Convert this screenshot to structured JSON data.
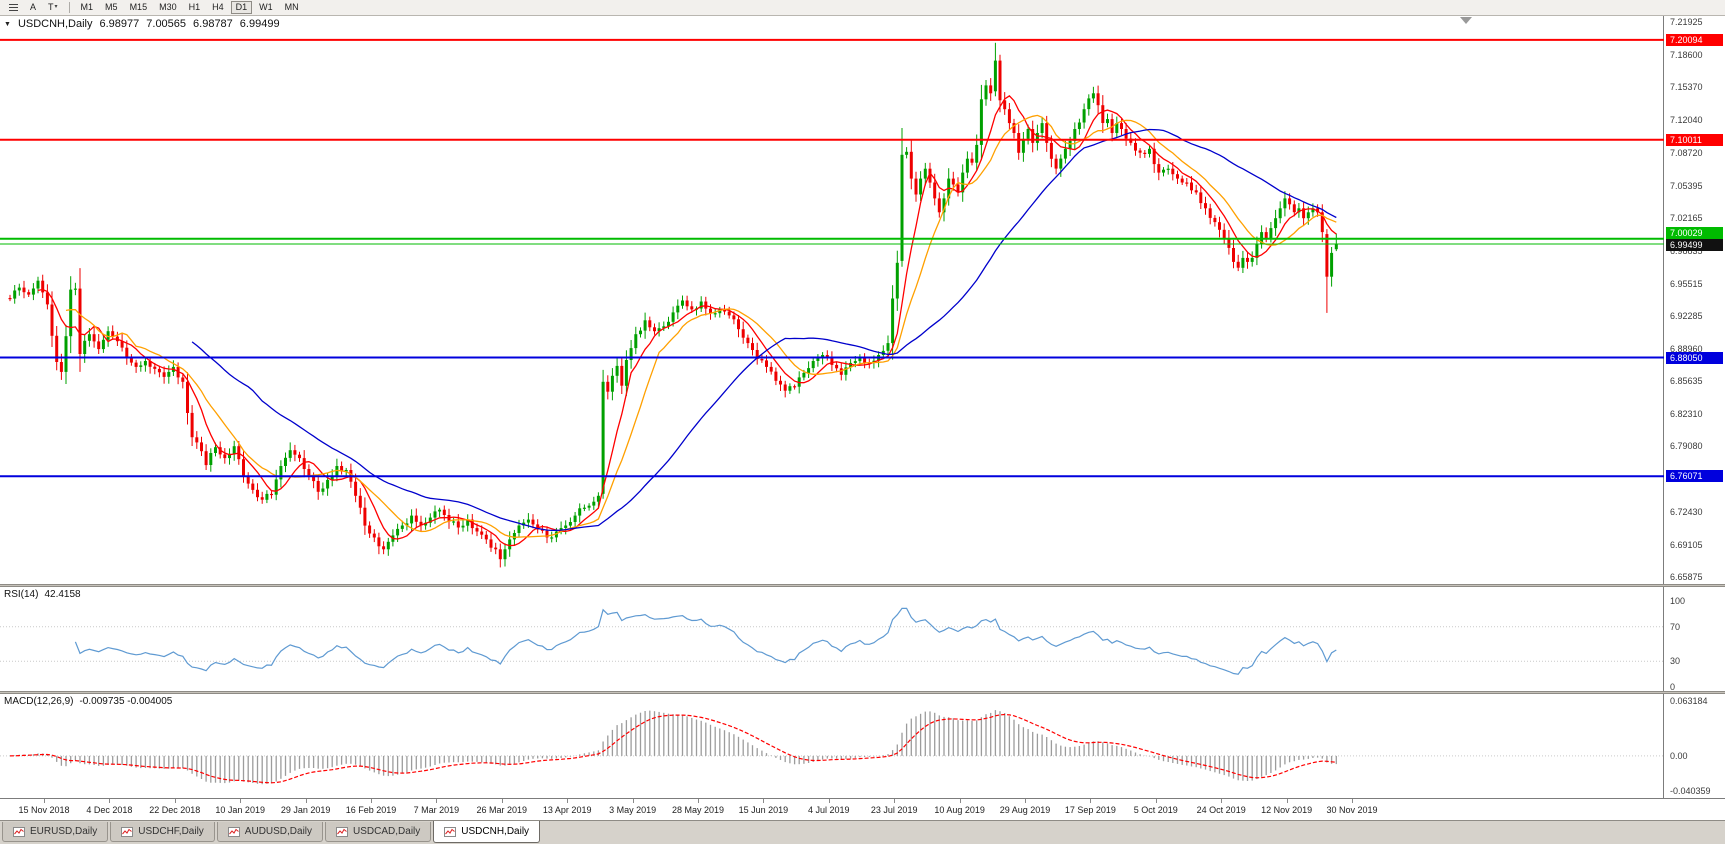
{
  "toolbar": {
    "cursor_label": "A",
    "text_label": "T",
    "periods": [
      "M1",
      "M5",
      "M15",
      "M30",
      "H1",
      "H4",
      "D1",
      "W1",
      "MN"
    ],
    "active_period": "D1"
  },
  "quote_bar": {
    "symbol": "USDCNH,Daily",
    "open": "6.98977",
    "high": "7.00565",
    "low": "6.98787",
    "close": "6.99499"
  },
  "chart_data": {
    "type": "candlestick",
    "title": "USDCNH,Daily",
    "timeframe": "Daily",
    "num_candles": 285,
    "price_max_axis": 7.225,
    "price_min_axis": 6.652,
    "y_axis_labels": [
      "7.21925",
      "7.18600",
      "7.15370",
      "7.12040",
      "7.08720",
      "7.05395",
      "7.02165",
      "6.98835",
      "6.95515",
      "6.92285",
      "6.88960",
      "6.85635",
      "6.82310",
      "6.79080",
      "6.75750",
      "6.72430",
      "6.69105",
      "6.65875"
    ],
    "x_axis_labels": [
      "15 Nov 2018",
      "4 Dec 2018",
      "22 Dec 2018",
      "10 Jan 2019",
      "29 Jan 2019",
      "16 Feb 2019",
      "7 Mar 2019",
      "26 Mar 2019",
      "13 Apr 2019",
      "3 May 2019",
      "28 May 2019",
      "15 Jun 2019",
      "4 Jul 2019",
      "23 Jul 2019",
      "10 Aug 2019",
      "29 Aug 2019",
      "17 Sep 2019",
      "5 Oct 2019",
      "24 Oct 2019",
      "12 Nov 2019",
      "30 Nov 2019"
    ],
    "candle_up_color": "#00a000",
    "candle_down_color": "#ee0000",
    "hlines": [
      {
        "price": 7.20094,
        "label": "7.20094",
        "color": "#ff0000",
        "width": 2
      },
      {
        "price": 7.10011,
        "label": "7.10011",
        "color": "#ff0000",
        "width": 2
      },
      {
        "price": 7.00029,
        "label": "7.00029",
        "color": "#00bb00",
        "width": 2
      },
      {
        "price": 6.8805,
        "label": "6.88050",
        "color": "#0000dd",
        "width": 2
      },
      {
        "price": 6.76071,
        "label": "6.76071",
        "color": "#0000dd",
        "width": 2
      }
    ],
    "bid_line": {
      "price": 6.99499,
      "label": "6.99499",
      "line_color": "#00bb00",
      "label_bg": "#111111"
    },
    "moving_averages": [
      {
        "name": "fast",
        "type": "sma",
        "period": 7,
        "color": "#ff0000"
      },
      {
        "name": "medium",
        "type": "sma",
        "period": 13,
        "color": "#ffa000"
      },
      {
        "name": "slow",
        "type": "sma",
        "period": 40,
        "color": "#0000cc"
      }
    ],
    "price_anchors": [
      [
        0,
        6.94
      ],
      [
        2,
        6.951
      ],
      [
        4,
        6.944
      ],
      [
        6,
        6.958
      ],
      [
        8,
        6.934
      ],
      [
        10,
        6.876
      ],
      [
        11,
        6.866
      ],
      [
        12,
        6.902
      ],
      [
        13,
        6.949
      ],
      [
        14,
        6.95
      ],
      [
        15,
        6.884
      ],
      [
        17,
        6.904
      ],
      [
        19,
        6.889
      ],
      [
        21,
        6.907
      ],
      [
        23,
        6.897
      ],
      [
        25,
        6.881
      ],
      [
        27,
        6.871
      ],
      [
        29,
        6.877
      ],
      [
        31,
        6.869
      ],
      [
        33,
        6.861
      ],
      [
        35,
        6.871
      ],
      [
        37,
        6.856
      ],
      [
        39,
        6.8
      ],
      [
        41,
        6.786
      ],
      [
        42,
        6.772
      ],
      [
        44,
        6.79
      ],
      [
        46,
        6.779
      ],
      [
        48,
        6.791
      ],
      [
        50,
        6.761
      ],
      [
        52,
        6.747
      ],
      [
        54,
        6.737
      ],
      [
        56,
        6.742
      ],
      [
        58,
        6.771
      ],
      [
        60,
        6.787
      ],
      [
        62,
        6.779
      ],
      [
        64,
        6.761
      ],
      [
        66,
        6.745
      ],
      [
        68,
        6.757
      ],
      [
        70,
        6.771
      ],
      [
        72,
        6.767
      ],
      [
        74,
        6.741
      ],
      [
        76,
        6.711
      ],
      [
        78,
        6.699
      ],
      [
        80,
        6.687
      ],
      [
        82,
        6.701
      ],
      [
        84,
        6.711
      ],
      [
        86,
        6.721
      ],
      [
        88,
        6.711
      ],
      [
        90,
        6.719
      ],
      [
        92,
        6.727
      ],
      [
        94,
        6.715
      ],
      [
        96,
        6.709
      ],
      [
        98,
        6.717
      ],
      [
        100,
        6.705
      ],
      [
        102,
        6.697
      ],
      [
        104,
        6.687
      ],
      [
        105,
        6.677
      ],
      [
        107,
        6.697
      ],
      [
        109,
        6.711
      ],
      [
        111,
        6.717
      ],
      [
        113,
        6.707
      ],
      [
        115,
        6.699
      ],
      [
        117,
        6.705
      ],
      [
        119,
        6.711
      ],
      [
        121,
        6.721
      ],
      [
        123,
        6.729
      ],
      [
        125,
        6.735
      ],
      [
        126,
        6.741
      ],
      [
        127,
        6.856
      ],
      [
        128,
        6.846
      ],
      [
        129,
        6.862
      ],
      [
        130,
        6.872
      ],
      [
        131,
        6.852
      ],
      [
        132,
        6.878
      ],
      [
        133,
        6.89
      ],
      [
        134,
        6.904
      ],
      [
        136,
        6.918
      ],
      [
        138,
        6.907
      ],
      [
        140,
        6.912
      ],
      [
        142,
        6.926
      ],
      [
        144,
        6.938
      ],
      [
        146,
        6.929
      ],
      [
        148,
        6.937
      ],
      [
        150,
        6.925
      ],
      [
        152,
        6.929
      ],
      [
        154,
        6.923
      ],
      [
        156,
        6.909
      ],
      [
        158,
        6.895
      ],
      [
        160,
        6.879
      ],
      [
        162,
        6.871
      ],
      [
        164,
        6.857
      ],
      [
        166,
        6.847
      ],
      [
        168,
        6.851
      ],
      [
        170,
        6.865
      ],
      [
        172,
        6.877
      ],
      [
        174,
        6.883
      ],
      [
        176,
        6.873
      ],
      [
        178,
        6.863
      ],
      [
        180,
        6.875
      ],
      [
        182,
        6.881
      ],
      [
        184,
        6.875
      ],
      [
        186,
        6.883
      ],
      [
        188,
        6.895
      ],
      [
        189,
        6.94
      ],
      [
        190,
        6.976
      ],
      [
        191,
        7.085
      ],
      [
        192,
        7.088
      ],
      [
        193,
        7.061
      ],
      [
        194,
        7.045
      ],
      [
        195,
        7.061
      ],
      [
        196,
        7.071
      ],
      [
        197,
        7.057
      ],
      [
        198,
        7.041
      ],
      [
        199,
        7.027
      ],
      [
        200,
        7.041
      ],
      [
        201,
        7.061
      ],
      [
        202,
        7.055
      ],
      [
        203,
        7.047
      ],
      [
        204,
        7.067
      ],
      [
        205,
        7.081
      ],
      [
        206,
        7.077
      ],
      [
        207,
        7.095
      ],
      [
        208,
        7.141
      ],
      [
        209,
        7.155
      ],
      [
        210,
        7.147
      ],
      [
        211,
        7.18
      ],
      [
        212,
        7.14
      ],
      [
        213,
        7.131
      ],
      [
        214,
        7.117
      ],
      [
        215,
        7.107
      ],
      [
        216,
        7.087
      ],
      [
        217,
        7.101
      ],
      [
        218,
        7.111
      ],
      [
        219,
        7.097
      ],
      [
        220,
        7.107
      ],
      [
        221,
        7.117
      ],
      [
        222,
        7.097
      ],
      [
        223,
        7.081
      ],
      [
        224,
        7.071
      ],
      [
        226,
        7.091
      ],
      [
        228,
        7.111
      ],
      [
        230,
        7.131
      ],
      [
        232,
        7.147
      ],
      [
        233,
        7.135
      ],
      [
        234,
        7.117
      ],
      [
        235,
        7.121
      ],
      [
        236,
        7.107
      ],
      [
        237,
        7.117
      ],
      [
        238,
        7.111
      ],
      [
        240,
        7.097
      ],
      [
        242,
        7.087
      ],
      [
        244,
        7.091
      ],
      [
        246,
        7.067
      ],
      [
        248,
        7.071
      ],
      [
        250,
        7.061
      ],
      [
        252,
        7.057
      ],
      [
        254,
        7.047
      ],
      [
        256,
        7.031
      ],
      [
        258,
        7.017
      ],
      [
        260,
        7.001
      ],
      [
        261,
        6.991
      ],
      [
        262,
        6.977
      ],
      [
        263,
        6.971
      ],
      [
        264,
        6.981
      ],
      [
        265,
        6.977
      ],
      [
        266,
        6.981
      ],
      [
        267,
        6.995
      ],
      [
        268,
        7.007
      ],
      [
        269,
        7.001
      ],
      [
        270,
        7.011
      ],
      [
        271,
        7.021
      ],
      [
        272,
        7.031
      ],
      [
        273,
        7.041
      ],
      [
        274,
        7.035
      ],
      [
        275,
        7.027
      ],
      [
        276,
        7.031
      ],
      [
        277,
        7.021
      ],
      [
        278,
        7.027
      ],
      [
        279,
        7.031
      ],
      [
        280,
        7.027
      ],
      [
        281,
        7.007
      ],
      [
        282,
        6.962
      ],
      [
        283,
        6.986
      ],
      [
        284,
        6.99499
      ]
    ],
    "forced_candles": {
      "127": [
        6.743,
        6.868,
        6.738,
        6.856
      ],
      "191": [
        6.978,
        7.112,
        6.972,
        7.085
      ],
      "211": [
        7.149,
        7.198,
        7.144,
        7.18
      ],
      "212": [
        7.18,
        7.186,
        7.128,
        7.14
      ],
      "282": [
        7.005,
        7.01,
        6.9255,
        6.962
      ],
      "283": [
        6.962,
        6.992,
        6.952,
        6.986
      ],
      "284": [
        6.98977,
        7.00565,
        6.98787,
        6.99499
      ]
    },
    "rsi": {
      "label_name": "RSI(14)",
      "label_value": "42.4158",
      "period": 14,
      "levels": [
        100,
        70,
        30,
        0
      ],
      "level_labels": [
        "100",
        "70",
        "30",
        "0"
      ],
      "color": "#5f9ad2"
    },
    "macd": {
      "label_name": "MACD(12,26,9)",
      "label_values": "-0.009735 -0.004005",
      "fast": 12,
      "slow": 26,
      "signal": 9,
      "scale_top_label": "0.063184",
      "scale_zero_label": "0.00",
      "scale_bottom_label": "-0.040359",
      "hist_color": "#9c9c9c",
      "signal_color": "#ff0000"
    }
  },
  "tabs": {
    "items": [
      {
        "label": "EURUSD,Daily",
        "active": false
      },
      {
        "label": "USDCHF,Daily",
        "active": false
      },
      {
        "label": "AUDUSD,Daily",
        "active": false
      },
      {
        "label": "USDCAD,Daily",
        "active": false
      },
      {
        "label": "USDCNH,Daily",
        "active": true
      }
    ]
  }
}
